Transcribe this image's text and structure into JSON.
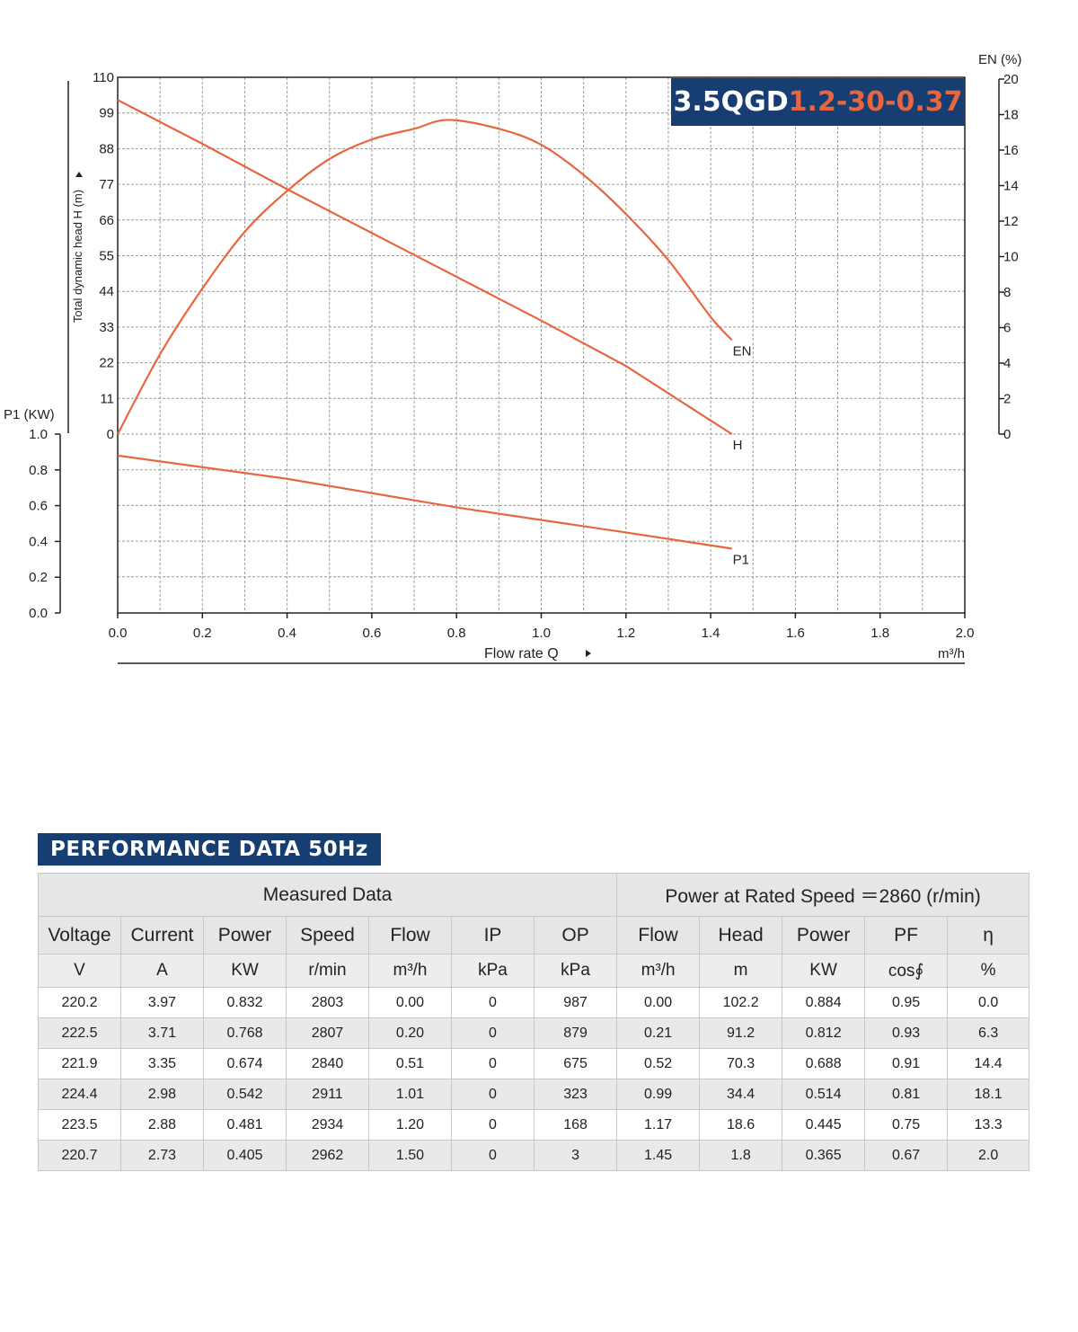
{
  "model": {
    "prefix": "3.5QGD",
    "highlight": "1.2-30-0.37",
    "highlight_color": "#e8663f",
    "box_color": "#173e73"
  },
  "chart_data": {
    "type": "line",
    "x_label": "Flow rate   Q",
    "x_unit": "m³/h",
    "x_ticks": [
      "0.0",
      "0.2",
      "0.4",
      "0.6",
      "0.8",
      "1.0",
      "1.2",
      "1.4",
      "1.6",
      "1.8",
      "2.0"
    ],
    "xlim": [
      0,
      2.0
    ],
    "y_left_top_label": "Total dynamic head H (m)",
    "y_left_top_ticks": [
      "110",
      "99",
      "88",
      "77",
      "66",
      "55",
      "44",
      "33",
      "22",
      "11",
      "0"
    ],
    "y_left_top_lim": [
      0,
      110
    ],
    "y_left_bottom_label": "P1 (KW)",
    "y_left_bottom_ticks": [
      "1.0",
      "0.8",
      "0.6",
      "0.4",
      "0.2",
      "0.0"
    ],
    "y_left_bottom_lim": [
      0,
      1.0
    ],
    "y_right_label": "EN (%)",
    "y_right_ticks": [
      "20",
      "18",
      "16",
      "14",
      "12",
      "10",
      "8",
      "6",
      "4",
      "2",
      "0"
    ],
    "y_right_lim": [
      0,
      20
    ],
    "grid": true,
    "line_color": "#e8663f",
    "series": [
      {
        "name": "H",
        "axis": "head",
        "points": [
          [
            0.0,
            103.0
          ],
          [
            0.2,
            89.5
          ],
          [
            0.4,
            75.5
          ],
          [
            0.6,
            62.0
          ],
          [
            0.8,
            48.5
          ],
          [
            1.0,
            35.0
          ],
          [
            1.2,
            21.0
          ],
          [
            1.45,
            0.0
          ]
        ]
      },
      {
        "name": "EN",
        "axis": "efficiency",
        "points": [
          [
            0.0,
            0.0
          ],
          [
            0.1,
            4.5
          ],
          [
            0.2,
            8.2
          ],
          [
            0.3,
            11.4
          ],
          [
            0.4,
            13.7
          ],
          [
            0.5,
            15.5
          ],
          [
            0.6,
            16.6
          ],
          [
            0.7,
            17.2
          ],
          [
            0.78,
            17.7
          ],
          [
            0.9,
            17.2
          ],
          [
            1.0,
            16.3
          ],
          [
            1.1,
            14.6
          ],
          [
            1.2,
            12.4
          ],
          [
            1.3,
            9.8
          ],
          [
            1.4,
            6.6
          ],
          [
            1.45,
            5.3
          ]
        ]
      },
      {
        "name": "P1",
        "axis": "power",
        "points": [
          [
            0.0,
            0.88
          ],
          [
            0.4,
            0.75
          ],
          [
            0.8,
            0.59
          ],
          [
            1.2,
            0.45
          ],
          [
            1.45,
            0.36
          ]
        ]
      }
    ]
  },
  "performance": {
    "title": "PERFORMANCE DATA 50Hz",
    "group_headers": [
      "Measured Data",
      "Power at Rated Speed ＝2860 (r/min)"
    ],
    "columns": [
      "Voltage",
      "Current",
      "Power",
      "Speed",
      "Flow",
      "IP",
      "OP",
      "Flow",
      "Head",
      "Power",
      "PF",
      "η"
    ],
    "units": [
      "V",
      "A",
      "KW",
      "r/min",
      "m³/h",
      "kPa",
      "kPa",
      "m³/h",
      "m",
      "KW",
      "cos∮",
      "%"
    ],
    "rows": [
      [
        "220.2",
        "3.97",
        "0.832",
        "2803",
        "0.00",
        "0",
        "987",
        "0.00",
        "102.2",
        "0.884",
        "0.95",
        "0.0"
      ],
      [
        "222.5",
        "3.71",
        "0.768",
        "2807",
        "0.20",
        "0",
        "879",
        "0.21",
        "91.2",
        "0.812",
        "0.93",
        "6.3"
      ],
      [
        "221.9",
        "3.35",
        "0.674",
        "2840",
        "0.51",
        "0",
        "675",
        "0.52",
        "70.3",
        "0.688",
        "0.91",
        "14.4"
      ],
      [
        "224.4",
        "2.98",
        "0.542",
        "2911",
        "1.01",
        "0",
        "323",
        "0.99",
        "34.4",
        "0.514",
        "0.81",
        "18.1"
      ],
      [
        "223.5",
        "2.88",
        "0.481",
        "2934",
        "1.20",
        "0",
        "168",
        "1.17",
        "18.6",
        "0.445",
        "0.75",
        "13.3"
      ],
      [
        "220.7",
        "2.73",
        "0.405",
        "2962",
        "1.50",
        "0",
        "3",
        "1.45",
        "1.8",
        "0.365",
        "0.67",
        "2.0"
      ]
    ]
  }
}
